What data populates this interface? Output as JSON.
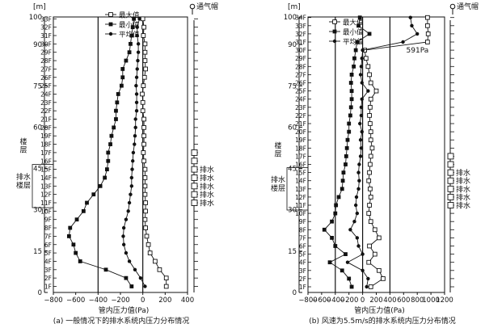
{
  "panels": [
    {
      "caption": "(a) 一般情况下的排水系统内压力分布情况",
      "xlabel": "管内压力值(Pa)",
      "ylabel_unit": "[m]",
      "vent_label": "通气帽",
      "drain_label": "排水",
      "floor_label": "楼层",
      "drain_floor_label": "排水楼层",
      "annotation": "",
      "legend": [
        "最大值",
        "最小值",
        "平均值"
      ]
    },
    {
      "caption": "(b) 风速为5.5m/s的排水系统内压力分布情况",
      "xlabel": "管内压力值(Pa)",
      "ylabel_unit": "[m]",
      "vent_label": "通气帽",
      "drain_label": "排水",
      "floor_label": "楼层",
      "drain_floor_label": "排水楼层",
      "annotation": "591Pa",
      "legend": [
        "最大值",
        "最小值",
        "平均值"
      ]
    }
  ],
  "chart_data": [
    {
      "type": "line",
      "title": "(a) 一般情况下的排水系统内压力分布情况",
      "xlabel": "管内压力值(Pa)",
      "ylabel": "[m]",
      "xlim": [
        -800,
        400
      ],
      "ylim": [
        0,
        100
      ],
      "xticks": [
        -800,
        -600,
        -400,
        -200,
        0,
        200,
        400
      ],
      "yticks": [
        0,
        15,
        30,
        45,
        60,
        75,
        90,
        100
      ],
      "floors": [
        "1F",
        "2F",
        "3F",
        "4F",
        "5F",
        "6F",
        "7F",
        "8F",
        "9F",
        "10F",
        "11F",
        "12F",
        "13F",
        "14F",
        "15F",
        "16F",
        "17F",
        "18F",
        "19F",
        "20F",
        "21F",
        "22F",
        "23F",
        "24F",
        "25F",
        "26F",
        "27F",
        "28F",
        "29F",
        "30F",
        "31F",
        "32F",
        "33F"
      ],
      "drain_floors": [
        "11F",
        "12F",
        "13F",
        "14F",
        "15F"
      ],
      "series": [
        {
          "name": "最大值",
          "marker": "open-square",
          "x": [
            210,
            210,
            150,
            110,
            65,
            50,
            35,
            25,
            20,
            25,
            25,
            20,
            20,
            20,
            20,
            10,
            5,
            10,
            10,
            10,
            10,
            0,
            0,
            -5,
            5,
            15,
            25,
            20,
            20,
            20,
            5,
            10,
            0
          ]
        },
        {
          "name": "最小值",
          "marker": "filled-square",
          "x": [
            -100,
            -150,
            -330,
            -560,
            -600,
            -620,
            -660,
            -650,
            -590,
            -530,
            -500,
            -440,
            -380,
            -340,
            -320,
            -310,
            -310,
            -290,
            -280,
            -260,
            -240,
            -240,
            -230,
            -220,
            -190,
            -180,
            -180,
            -150,
            -120,
            -110,
            -100,
            -90,
            -80
          ]
        },
        {
          "name": "平均值",
          "marker": "filled-dot",
          "x": [
            20,
            -20,
            -70,
            -120,
            -150,
            -170,
            -175,
            -170,
            -150,
            -130,
            -120,
            -110,
            -100,
            -100,
            -95,
            -90,
            -85,
            -75,
            -70,
            -65,
            -65,
            -55,
            -55,
            -55,
            -60,
            -55,
            -50,
            -45,
            -40,
            -40,
            -50,
            -50,
            -30
          ]
        }
      ]
    },
    {
      "type": "line",
      "title": "(b) 风速为5.5m/s的排水系统内压力分布情况",
      "xlabel": "管内压力值(Pa)",
      "ylabel": "[m]",
      "xlim": [
        -800,
        1200
      ],
      "ylim": [
        0,
        100
      ],
      "xticks": [
        -800,
        -600,
        -400,
        -200,
        0,
        200,
        400,
        600,
        800,
        1000,
        1200
      ],
      "yticks": [
        0,
        15,
        30,
        45,
        60,
        75,
        90,
        100
      ],
      "floors": [
        "1F",
        "2F",
        "3F",
        "4F",
        "5F",
        "6F",
        "7F",
        "8F",
        "9F",
        "10F",
        "11F",
        "12F",
        "13F",
        "14F",
        "15F",
        "16F",
        "17F",
        "18F",
        "19F",
        "20F",
        "21F",
        "22F",
        "23F",
        "24F",
        "25F",
        "26F",
        "27F",
        "28F",
        "29F",
        "30F",
        "31F",
        "32F",
        "33F",
        "34F"
      ],
      "drain_floors": [
        "11F",
        "12F",
        "13F",
        "14F",
        "15F"
      ],
      "annotation": "591Pa",
      "series": [
        {
          "name": "最大值",
          "marker": "open-square",
          "x": [
            120,
            300,
            240,
            90,
            180,
            100,
            240,
            180,
            120,
            90,
            100,
            120,
            110,
            90,
            100,
            110,
            120,
            140,
            120,
            120,
            110,
            100,
            110,
            120,
            200,
            120,
            100,
            80,
            50,
            30,
            950,
            960,
            950,
            950
          ]
        },
        {
          "name": "最小值",
          "marker": "filled-square",
          "x": [
            -160,
            -200,
            -300,
            -480,
            -250,
            -400,
            -450,
            -560,
            -450,
            -400,
            -390,
            -350,
            -300,
            -290,
            -280,
            -250,
            -240,
            -230,
            -220,
            -200,
            -200,
            -180,
            -170,
            -160,
            -160,
            -170,
            -160,
            -130,
            -120,
            -100,
            -80,
            100,
            -60,
            -40
          ]
        },
        {
          "name": "平均值",
          "marker": "filled-dot",
          "x": [
            60,
            80,
            0,
            -220,
            0,
            -60,
            -80,
            -180,
            -120,
            -80,
            -100,
            -90,
            -60,
            -50,
            -60,
            -50,
            -30,
            -20,
            -30,
            -10,
            -40,
            -20,
            -20,
            -10,
            80,
            -10,
            -30,
            -20,
            -10,
            0,
            591,
            800,
            720,
            700
          ]
        }
      ]
    }
  ]
}
